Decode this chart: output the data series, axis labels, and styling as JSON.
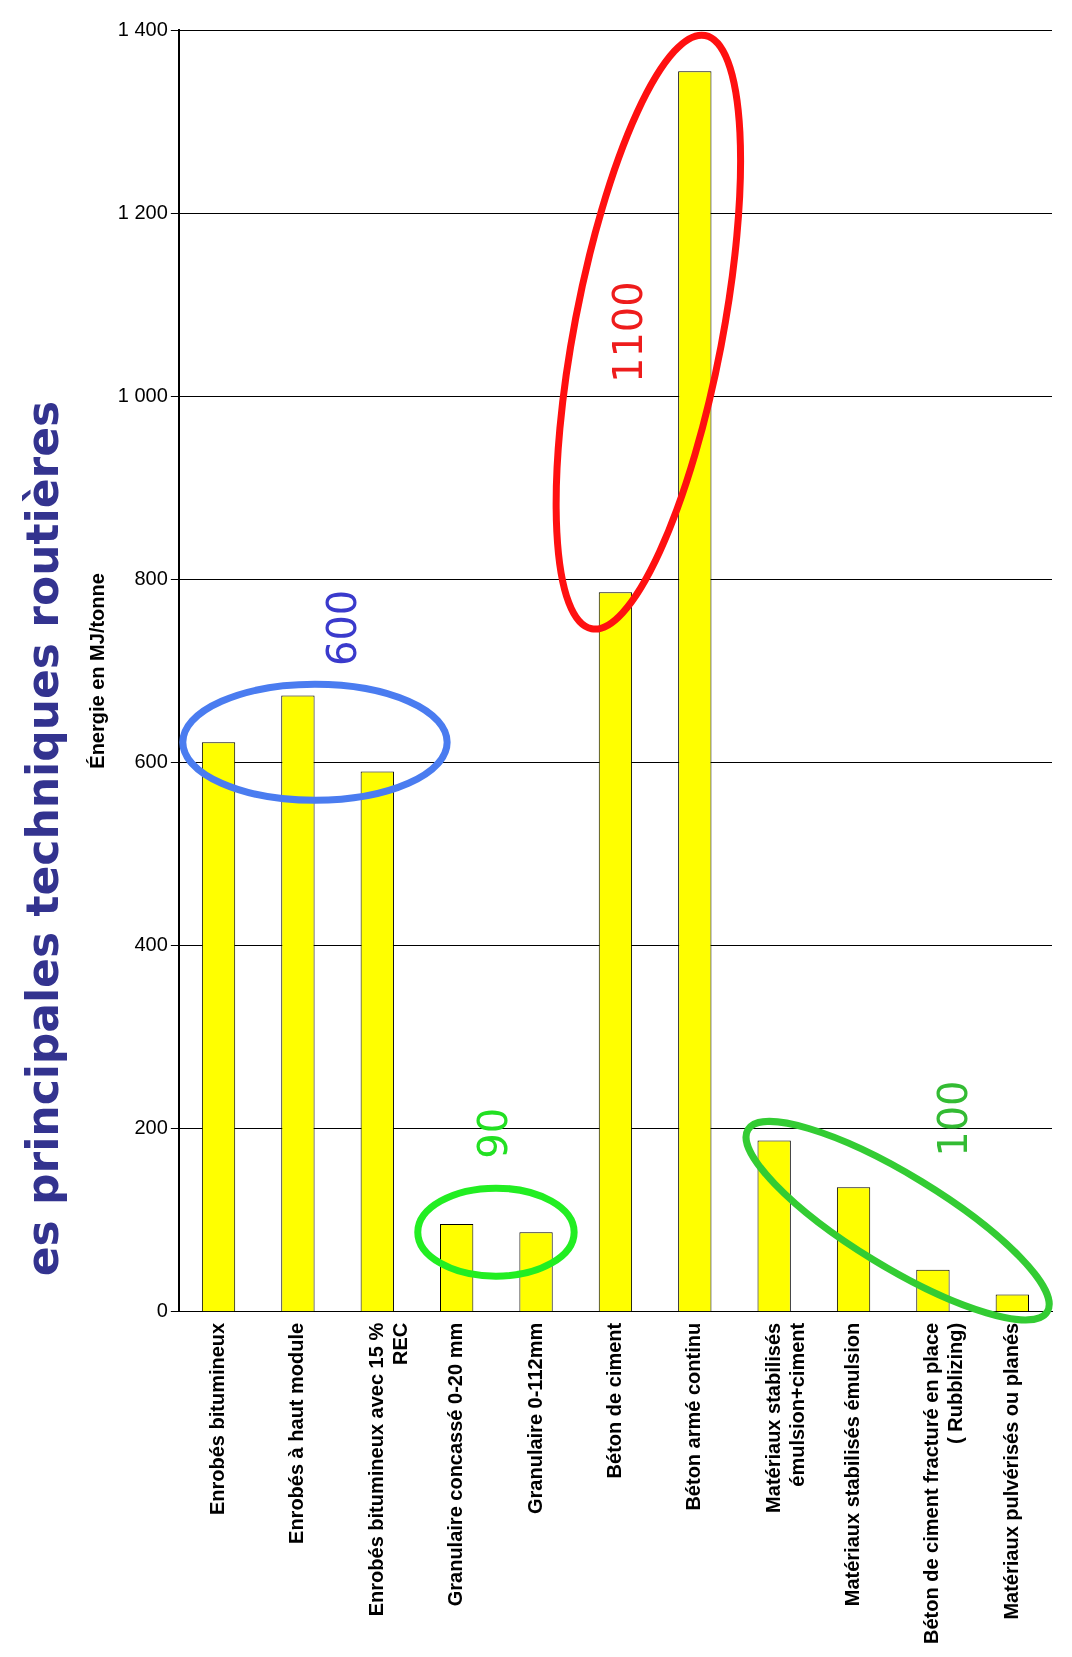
{
  "chart_data": {
    "type": "bar",
    "title": "es principales techniques routières",
    "ylabel": "Énergie en MJ/tonne",
    "categories": [
      "Enrobés bitumineux",
      "Enrobés à haut module",
      "Enrobés bitumineux avec 15 %\nREC",
      "Granulaire concassé 0-20 mm",
      "Granulaire 0-112mm",
      "Béton de ciment",
      "Béton armé continu",
      "Matériaux stabilisés\némulsion+ciment",
      "Matériaux stabilisés émulsion",
      "Béton de ciment fracturé en place\n( Rubblizing)",
      "Matériaux pulvérisés ou planés"
    ],
    "values": [
      622,
      673,
      590,
      96,
      87,
      786,
      1355,
      187,
      136,
      46,
      19
    ],
    "color": "#ffff00",
    "ylim": [
      0,
      1400
    ],
    "yticks": [
      0,
      200,
      400,
      600,
      800,
      {
        "value": 1000,
        "label": "1 000"
      },
      {
        "value": 1200,
        "label": "1 200"
      },
      {
        "value": 1400,
        "label": "1 400"
      }
    ],
    "grid": "y",
    "annotations": [
      "600",
      "90",
      "1100",
      "100"
    ]
  }
}
